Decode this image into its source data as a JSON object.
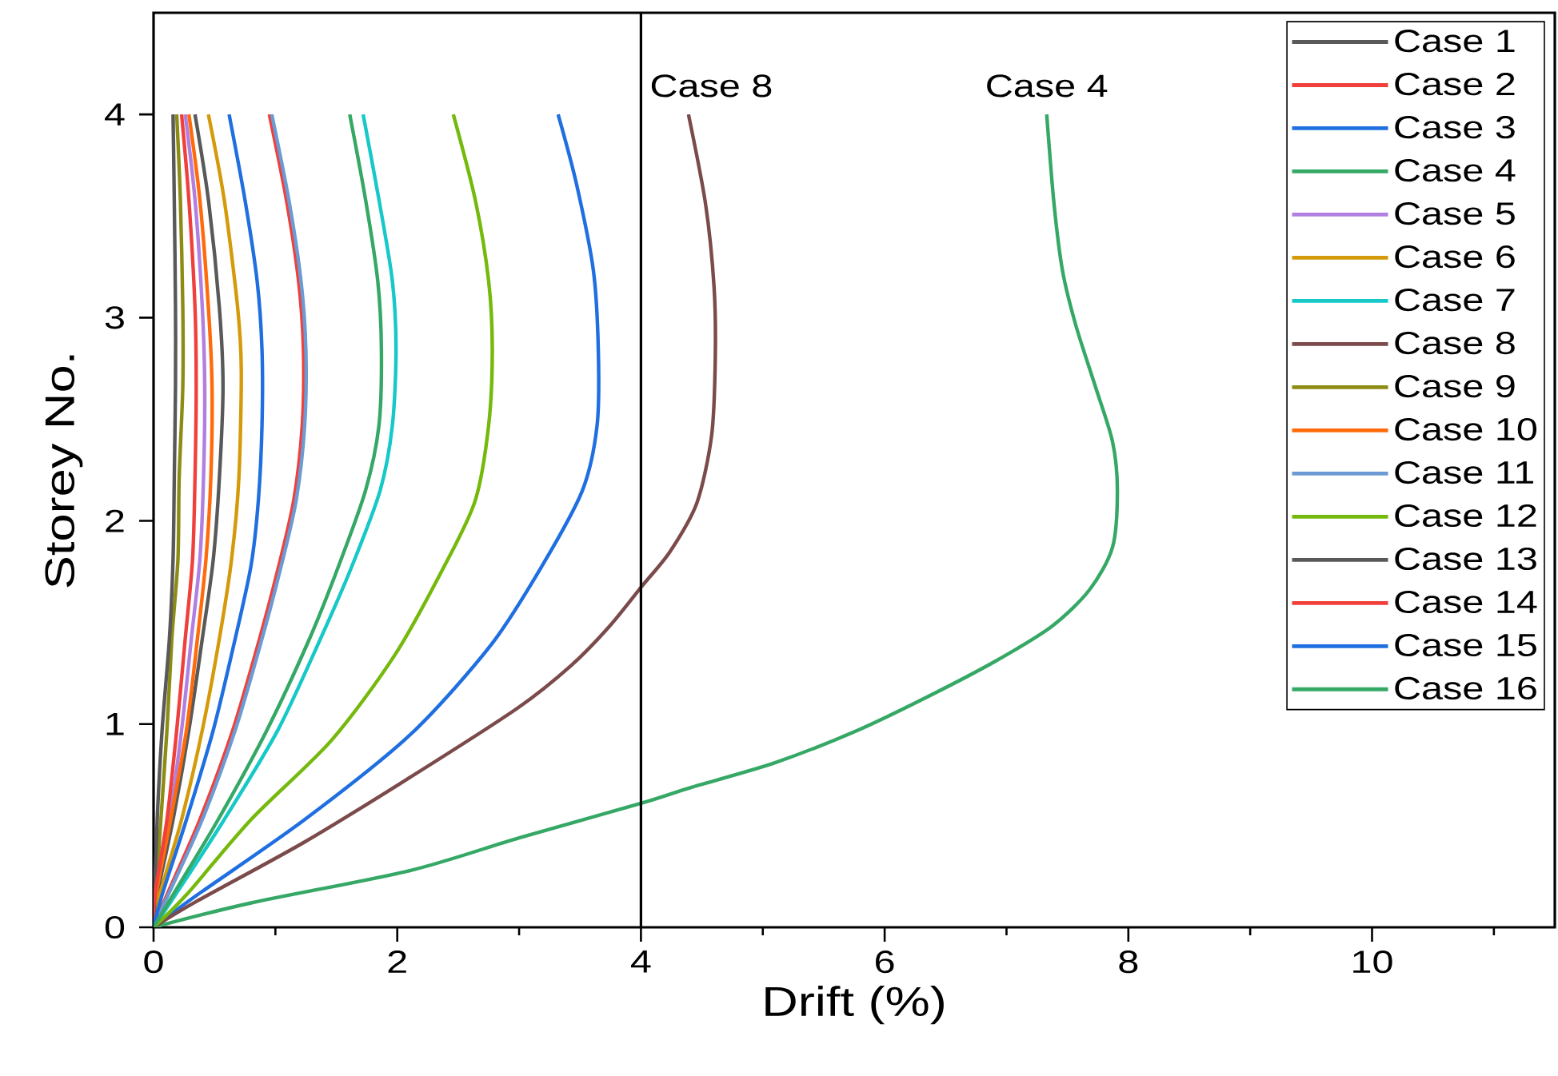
{
  "chart_data": {
    "type": "line",
    "xlabel": "Drift (%)",
    "ylabel": "Storey No.",
    "xlim": [
      0,
      11.5
    ],
    "ylim": [
      0,
      4.5
    ],
    "xticks": [
      0,
      {
        "value": 1,
        "label": null
      },
      2,
      {
        "value": 3,
        "label": null
      },
      4,
      {
        "value": 5,
        "label": null
      },
      6,
      {
        "value": 7,
        "label": null
      },
      8,
      {
        "value": 9,
        "label": null
      },
      10,
      {
        "value": 11,
        "label": null
      }
    ],
    "yticks": [
      0,
      1,
      2,
      3,
      4
    ],
    "legend": "top right",
    "line_style": "solid",
    "ref_lines": [
      {
        "axis": "x",
        "value": 4,
        "color": "#000000"
      }
    ],
    "annotations": [
      {
        "text": "Case 8",
        "x": 4.39,
        "y": 4
      },
      {
        "text": "Case 4",
        "x": 7.33,
        "y": 4
      }
    ],
    "series": [
      {
        "name": "Case 1",
        "color": "#595959",
        "x": [
          0,
          0.03,
          0.16,
          0.29,
          0.4,
          0.49,
          0.54,
          0.57,
          0.54,
          0.45,
          0.34
        ],
        "values": [
          0,
          0.16,
          0.53,
          0.97,
          1.42,
          1.81,
          2.21,
          2.66,
          3.05,
          3.58,
          4
        ]
      },
      {
        "name": "Case 2",
        "color": "#f0403c",
        "x": [
          0,
          0.11,
          0.38,
          0.65,
          0.87,
          1.02,
          1.15,
          1.22,
          1.23,
          1.19,
          1.09,
          0.95
        ],
        "values": [
          0,
          0.16,
          0.53,
          0.97,
          1.42,
          1.76,
          2.1,
          2.47,
          2.84,
          3.18,
          3.58,
          4
        ]
      },
      {
        "name": "Case 3",
        "color": "#1f6fe0",
        "x": [
          0,
          0.36,
          1.24,
          2.11,
          2.77,
          3.19,
          3.52,
          3.64,
          3.65,
          3.61,
          3.47,
          3.32
        ],
        "values": [
          0,
          0.16,
          0.53,
          0.95,
          1.39,
          1.78,
          2.15,
          2.47,
          2.84,
          3.23,
          3.66,
          4
        ]
      },
      {
        "name": "Case 4",
        "color": "#35a866",
        "x": [
          0,
          0.8,
          2.11,
          3.0,
          4.0,
          4.42,
          5.1,
          5.78,
          6.37,
          6.91,
          7.37,
          7.68,
          7.87,
          7.91,
          7.87,
          7.73,
          7.57,
          7.46,
          7.39,
          7.33
        ],
        "values": [
          0,
          0.12,
          0.28,
          0.44,
          0.61,
          0.69,
          0.81,
          0.97,
          1.14,
          1.31,
          1.48,
          1.66,
          1.87,
          2.15,
          2.39,
          2.66,
          2.96,
          3.23,
          3.56,
          4
        ]
      },
      {
        "name": "Case 5",
        "color": "#b07fe0",
        "x": [
          0,
          0.02,
          0.13,
          0.23,
          0.31,
          0.38,
          0.41,
          0.42,
          0.4,
          0.34,
          0.26
        ],
        "values": [
          0,
          0.16,
          0.53,
          0.97,
          1.42,
          1.81,
          2.21,
          2.66,
          3.05,
          3.58,
          4
        ]
      },
      {
        "name": "Case 6",
        "color": "#d49a0a",
        "x": [
          0,
          0.05,
          0.23,
          0.4,
          0.54,
          0.64,
          0.7,
          0.72,
          0.69,
          0.58,
          0.45
        ],
        "values": [
          0,
          0.16,
          0.53,
          0.97,
          1.42,
          1.81,
          2.21,
          2.74,
          3.05,
          3.58,
          4
        ]
      },
      {
        "name": "Case 7",
        "color": "#17c8c8",
        "x": [
          0,
          0.18,
          0.58,
          1.02,
          1.37,
          1.63,
          1.86,
          1.96,
          1.99,
          1.96,
          1.85,
          1.72
        ],
        "values": [
          0,
          0.16,
          0.53,
          0.97,
          1.42,
          1.78,
          2.15,
          2.47,
          2.84,
          3.18,
          3.58,
          4
        ]
      },
      {
        "name": "Case 8",
        "color": "#7b4a4a",
        "x": [
          0,
          0.36,
          1.24,
          2.11,
          2.99,
          3.43,
          3.74,
          4.01,
          4.24,
          4.46,
          4.58,
          4.61,
          4.6,
          4.53,
          4.39
        ],
        "values": [
          0,
          0.13,
          0.42,
          0.74,
          1.08,
          1.29,
          1.48,
          1.68,
          1.85,
          2.09,
          2.42,
          2.8,
          3.15,
          3.56,
          4
        ]
      },
      {
        "name": "Case 9",
        "color": "#8c8c14",
        "x": [
          0,
          0.06,
          0.11,
          0.15,
          0.2,
          0.21,
          0.24,
          0.24,
          0.22,
          0.19
        ],
        "values": [
          0,
          0.53,
          0.97,
          1.42,
          1.81,
          2.21,
          2.66,
          3.05,
          3.58,
          4
        ]
      },
      {
        "name": "Case 10",
        "color": "#ff6a0a",
        "x": [
          0,
          0.02,
          0.14,
          0.27,
          0.36,
          0.43,
          0.47,
          0.48,
          0.45,
          0.38,
          0.29
        ],
        "values": [
          0,
          0.16,
          0.53,
          0.97,
          1.42,
          1.81,
          2.21,
          2.66,
          3.05,
          3.58,
          4
        ]
      },
      {
        "name": "Case 11",
        "color": "#6b9bd2",
        "x": [
          0,
          0.12,
          0.4,
          0.67,
          0.89,
          1.04,
          1.17,
          1.24,
          1.25,
          1.21,
          1.11,
          0.97
        ],
        "values": [
          0,
          0.16,
          0.53,
          0.97,
          1.42,
          1.76,
          2.1,
          2.47,
          2.84,
          3.18,
          3.58,
          4
        ]
      },
      {
        "name": "Case 12",
        "color": "#74b90c",
        "x": [
          0,
          0.27,
          0.8,
          1.46,
          1.98,
          2.38,
          2.64,
          2.75,
          2.78,
          2.75,
          2.64,
          2.46
        ],
        "values": [
          0,
          0.16,
          0.53,
          0.92,
          1.34,
          1.77,
          2.1,
          2.47,
          2.84,
          3.18,
          3.58,
          4
        ]
      },
      {
        "name": "Case 13",
        "color": "#595959",
        "x": [
          0,
          0.03,
          0.07,
          0.13,
          0.16,
          0.17,
          0.18,
          0.18,
          0.17,
          0.16
        ],
        "values": [
          0,
          0.53,
          0.97,
          1.42,
          1.81,
          2.21,
          2.66,
          3.05,
          3.58,
          4
        ]
      },
      {
        "name": "Case 14",
        "color": "#f0403c",
        "x": [
          0,
          0.01,
          0.11,
          0.19,
          0.26,
          0.32,
          0.34,
          0.35,
          0.34,
          0.29,
          0.23
        ],
        "values": [
          0,
          0.16,
          0.53,
          0.97,
          1.42,
          1.81,
          2.21,
          2.66,
          3.05,
          3.58,
          4
        ]
      },
      {
        "name": "Case 15",
        "color": "#1f6fe0",
        "x": [
          0,
          0.07,
          0.27,
          0.49,
          0.67,
          0.8,
          0.86,
          0.89,
          0.89,
          0.85,
          0.75,
          0.62
        ],
        "values": [
          0,
          0.16,
          0.53,
          0.97,
          1.42,
          1.78,
          2.1,
          2.47,
          2.84,
          3.18,
          3.58,
          4
        ]
      },
      {
        "name": "Case 16",
        "color": "#35a866",
        "x": [
          0,
          0.16,
          0.53,
          0.93,
          1.28,
          1.52,
          1.74,
          1.85,
          1.87,
          1.84,
          1.74,
          1.61
        ],
        "values": [
          0,
          0.16,
          0.53,
          0.97,
          1.42,
          1.78,
          2.15,
          2.47,
          2.84,
          3.18,
          3.58,
          4
        ]
      }
    ]
  }
}
